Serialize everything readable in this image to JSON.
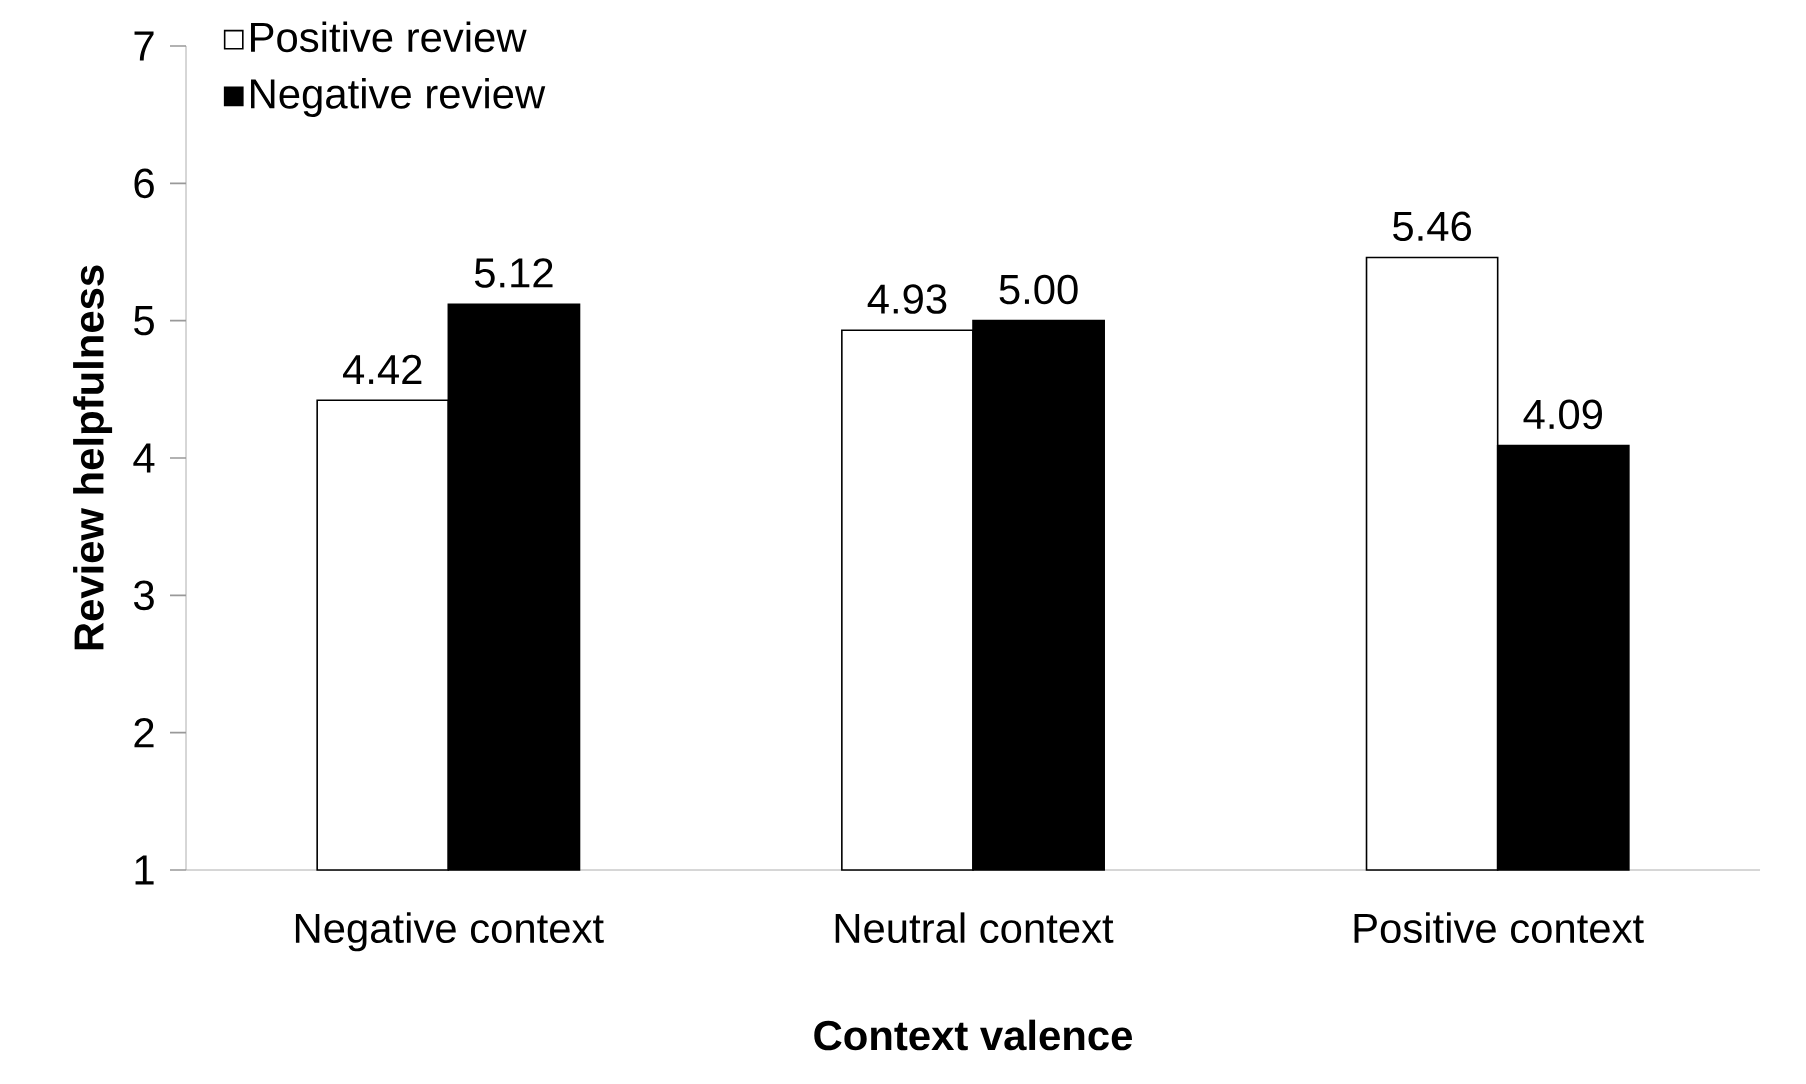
{
  "chart_data": {
    "type": "bar",
    "xlabel": "Context valence",
    "ylabel": "Review helpfulness",
    "categories": [
      "Negative context",
      "Neutral context",
      "Positive context"
    ],
    "series": [
      {
        "name": "Positive review",
        "color": "#ffffff",
        "values": [
          4.42,
          4.93,
          5.46
        ],
        "value_labels": [
          "4.42",
          "4.93",
          "5.46"
        ]
      },
      {
        "name": "Negative review",
        "color": "#000000",
        "values": [
          5.12,
          5.0,
          4.09
        ],
        "value_labels": [
          "5.12",
          "5.00",
          "4.09"
        ]
      }
    ],
    "ylim": [
      1,
      7
    ],
    "yticks": [
      1,
      2,
      3,
      4,
      5,
      6,
      7
    ],
    "grid": false,
    "legend": "top left"
  }
}
